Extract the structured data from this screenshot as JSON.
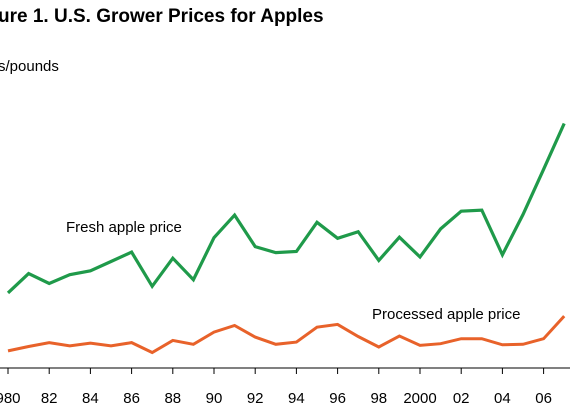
{
  "chart_data": {
    "type": "line",
    "title": "ure 1.  U.S. Grower Prices for Apples",
    "ylabel": "s/pounds",
    "xlabel": "",
    "x": [
      1980,
      1981,
      1982,
      1983,
      1984,
      1985,
      1986,
      1987,
      1988,
      1989,
      1990,
      1991,
      1992,
      1993,
      1994,
      1995,
      1996,
      1997,
      1998,
      1999,
      2000,
      2001,
      2002,
      2003,
      2004,
      2005,
      2006,
      2007
    ],
    "tick_labels": [
      {
        "x": 1980,
        "label": "980"
      },
      {
        "x": 1982,
        "label": "82"
      },
      {
        "x": 1984,
        "label": "84"
      },
      {
        "x": 1986,
        "label": "86"
      },
      {
        "x": 1988,
        "label": "88"
      },
      {
        "x": 1990,
        "label": "90"
      },
      {
        "x": 1992,
        "label": "92"
      },
      {
        "x": 1994,
        "label": "94"
      },
      {
        "x": 1996,
        "label": "96"
      },
      {
        "x": 1998,
        "label": "98"
      },
      {
        "x": 2000,
        "label": "2000"
      },
      {
        "x": 2002,
        "label": "02"
      },
      {
        "x": 2004,
        "label": "04"
      },
      {
        "x": 2006,
        "label": "06"
      }
    ],
    "ylim": [
      0,
      50
    ],
    "grid": false,
    "series": [
      {
        "name": "Fresh apple price",
        "color": "#1f9a4a",
        "values": [
          13.6,
          17.1,
          15.3,
          16.9,
          17.6,
          19.3,
          21.0,
          14.8,
          19.9,
          16.0,
          23.6,
          27.7,
          22.0,
          20.9,
          21.1,
          26.4,
          23.5,
          24.7,
          19.5,
          23.7,
          20.1,
          25.2,
          28.4,
          28.6,
          20.5,
          27.8,
          36.0,
          44.3
        ]
      },
      {
        "name": "Processed apple price",
        "color": "#e8622a",
        "values": [
          3.1,
          3.9,
          4.6,
          4.0,
          4.5,
          4.0,
          4.6,
          2.8,
          5.0,
          4.3,
          6.5,
          7.7,
          5.6,
          4.3,
          4.7,
          7.4,
          7.9,
          5.7,
          3.8,
          5.8,
          4.1,
          4.4,
          5.3,
          5.3,
          4.2,
          4.3,
          5.3,
          9.4
        ]
      }
    ]
  }
}
